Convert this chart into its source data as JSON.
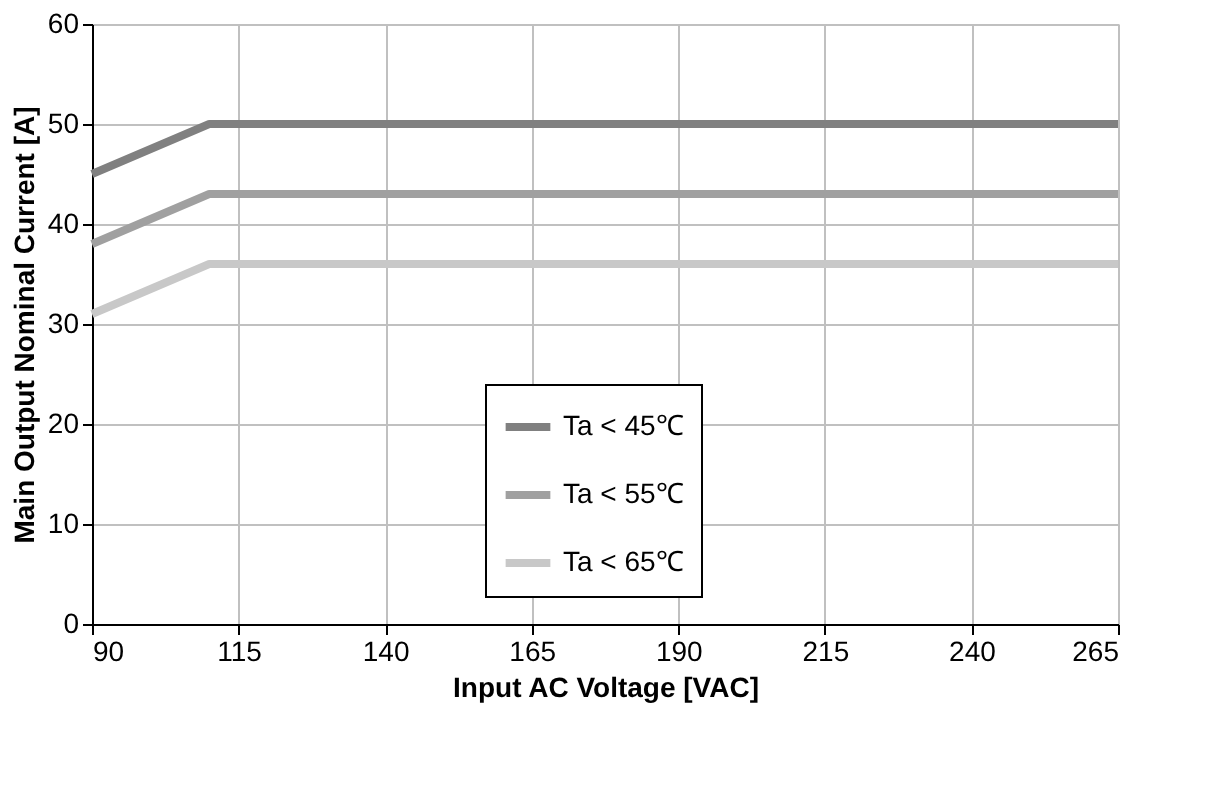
{
  "chart_data": {
    "type": "line",
    "xlabel": "Input AC Voltage [VAC]",
    "ylabel": "Main Output Nominal Current [A]",
    "x": [
      90,
      110,
      265
    ],
    "series": [
      {
        "name": "Ta < 45℃",
        "color": "#808080",
        "values": [
          45,
          50,
          50
        ]
      },
      {
        "name": "Ta < 55℃",
        "color": "#a0a0a0",
        "values": [
          38,
          43,
          43
        ]
      },
      {
        "name": "Ta < 65℃",
        "color": "#c8c8c8",
        "values": [
          31,
          36,
          36
        ]
      }
    ],
    "xlim": [
      90,
      265
    ],
    "xticks": [
      90,
      115,
      140,
      165,
      190,
      215,
      240,
      265
    ],
    "ylim": [
      0,
      60
    ],
    "yticks": [
      0,
      10,
      20,
      30,
      40,
      50,
      60
    ],
    "grid": true,
    "legend": "center",
    "marker": "none",
    "line_style": "solid"
  }
}
